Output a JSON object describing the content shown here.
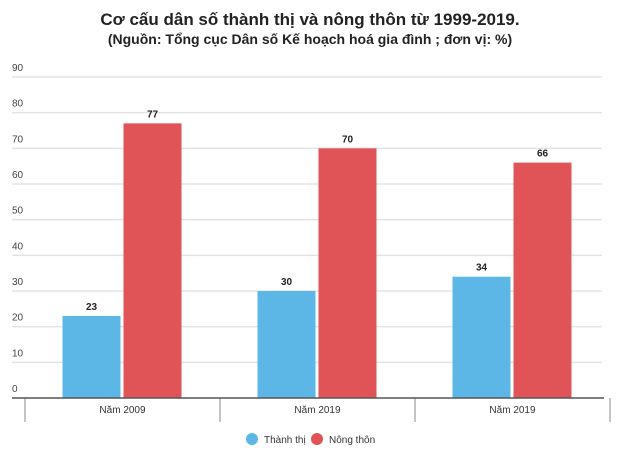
{
  "chart_data": {
    "type": "bar",
    "title": "Cơ cấu dân số thành thị và nông thôn từ 1999-2019.",
    "subtitle": "(Nguồn: Tổng cục Dân số Kế hoạch hoá gia đình ; đơn vị: %)",
    "categories": [
      "Năm 2009",
      "Năm 2019",
      "Năm 2019"
    ],
    "series": [
      {
        "name": "Thành thị",
        "color": "#5db7e6",
        "values": [
          23,
          30,
          34
        ]
      },
      {
        "name": "Nông thôn",
        "color": "#e05356",
        "values": [
          77,
          70,
          66
        ]
      }
    ],
    "ylim": [
      0,
      90
    ],
    "yticks": [
      0,
      10,
      20,
      30,
      40,
      50,
      60,
      70,
      80,
      90
    ],
    "grid": true,
    "legend": "bottom"
  }
}
